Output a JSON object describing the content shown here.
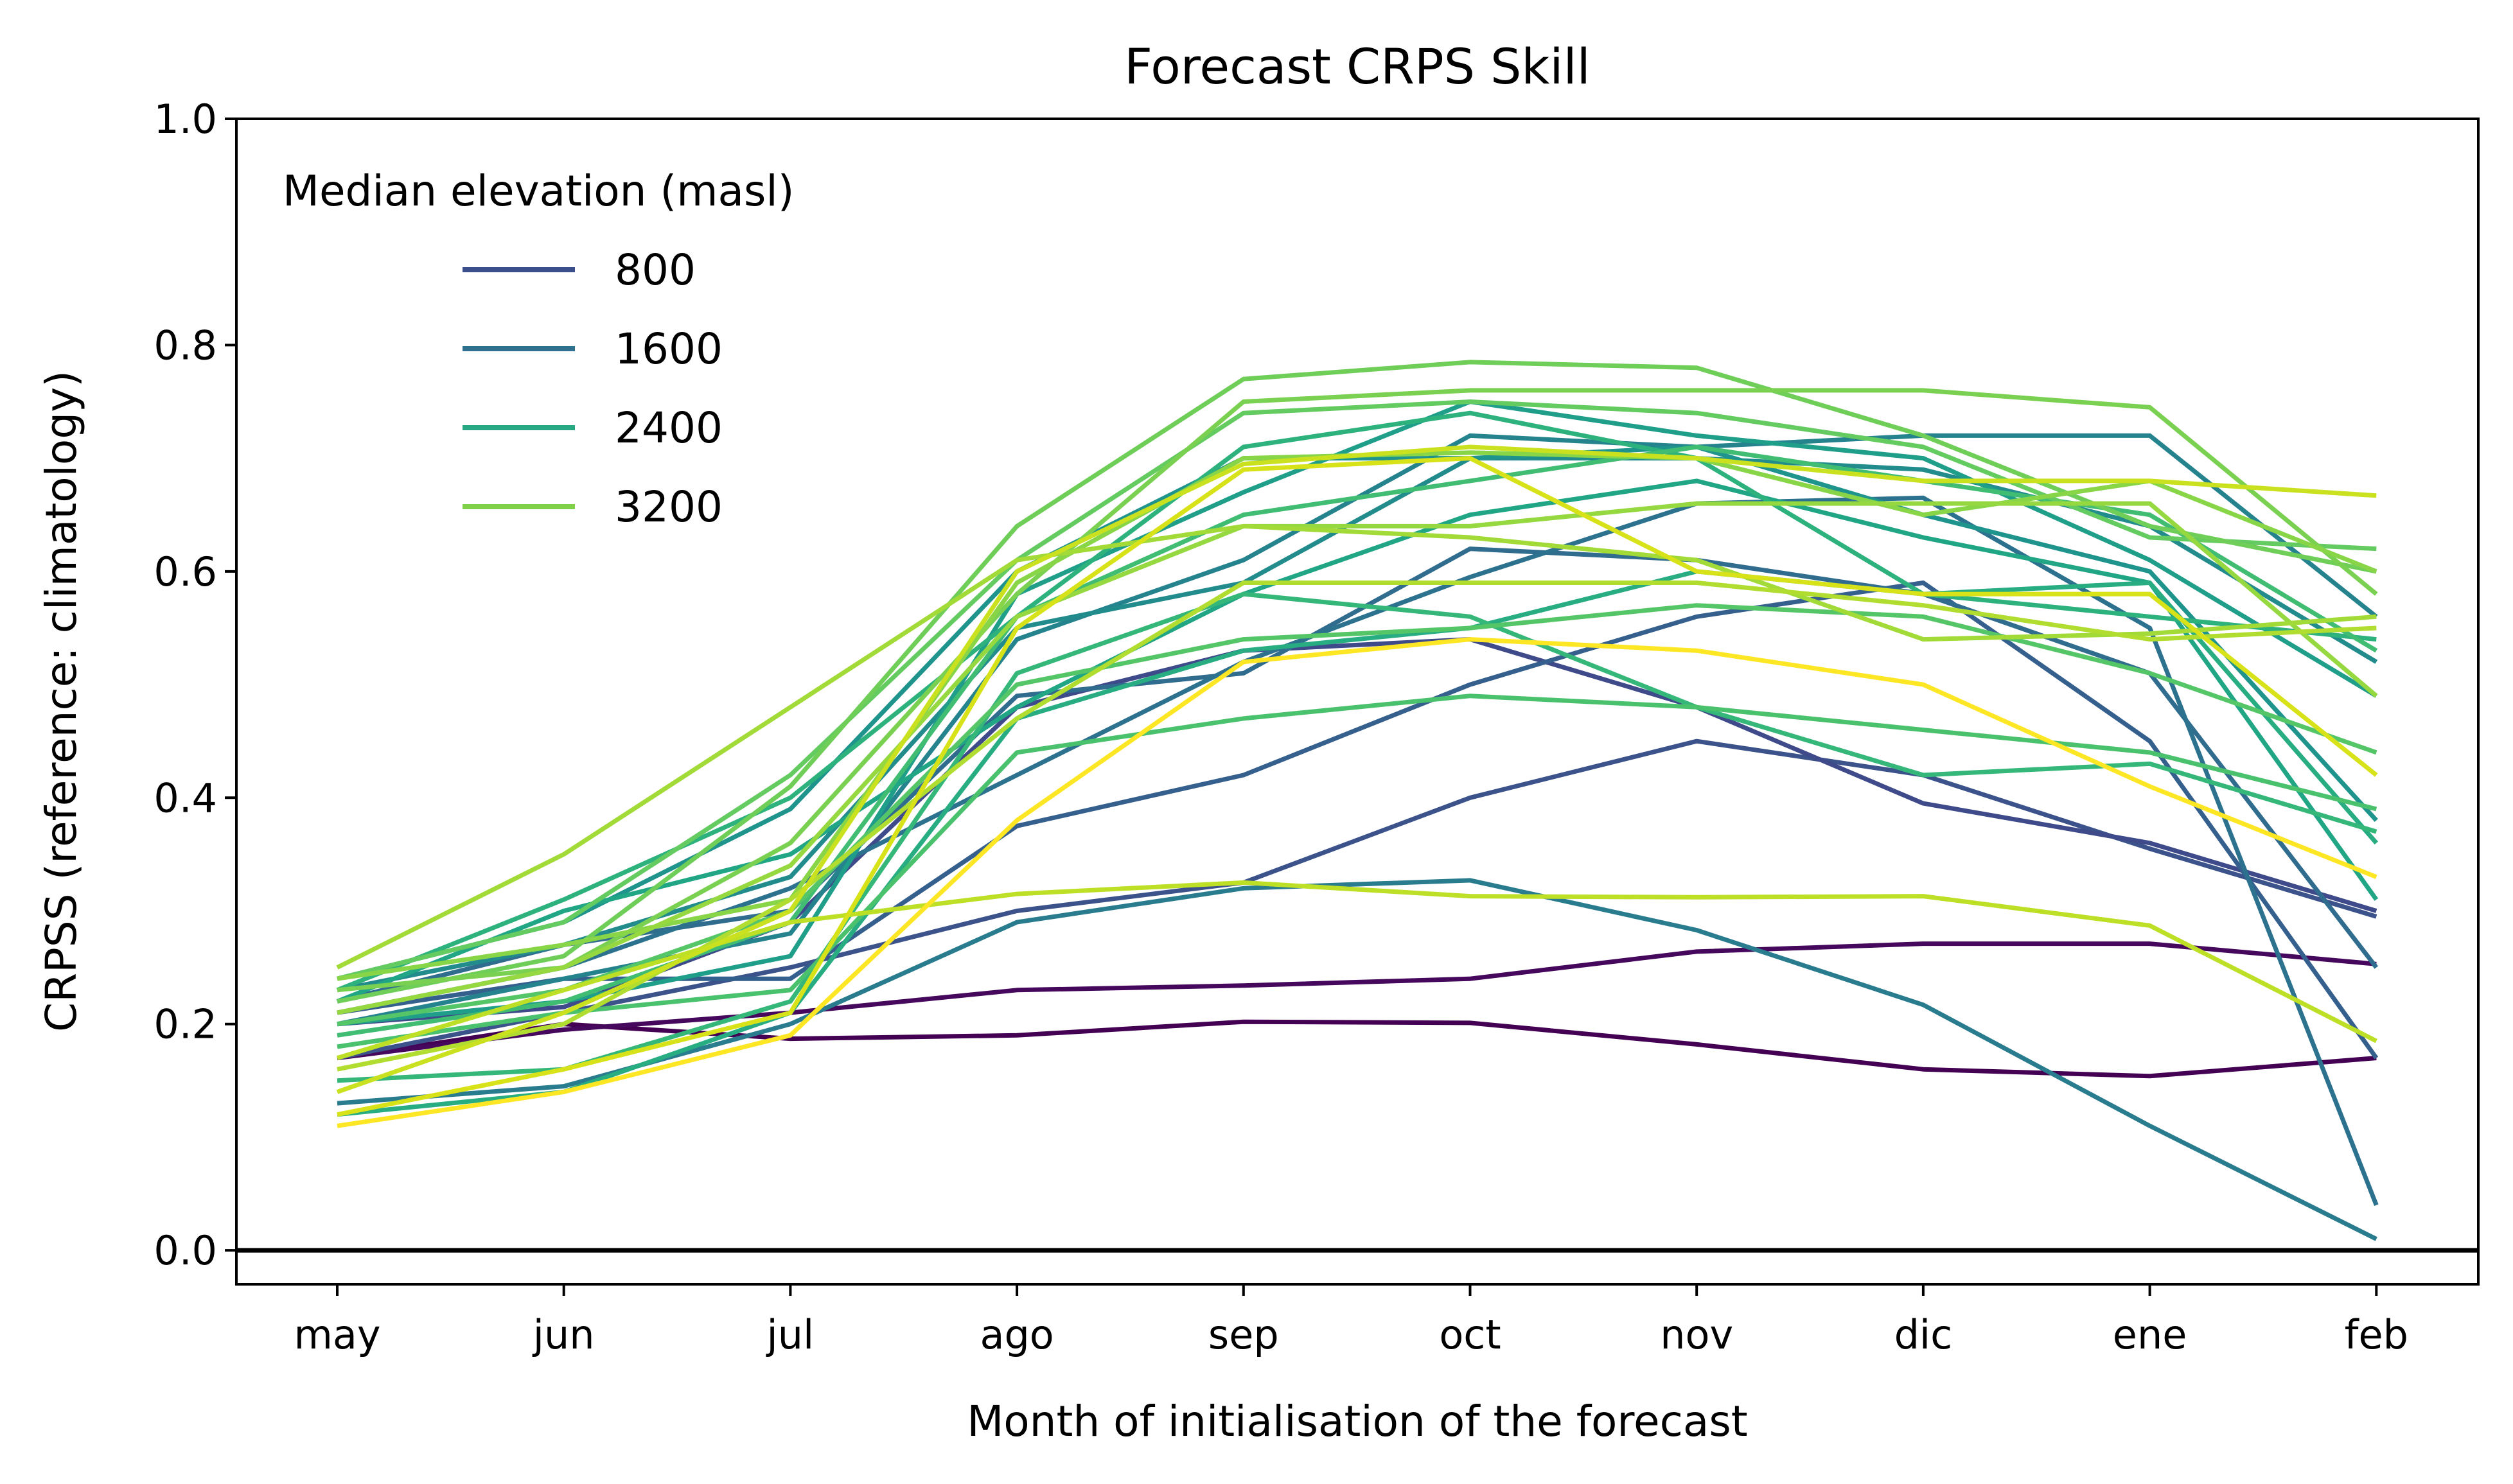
{
  "chart_data": {
    "type": "line",
    "title": "Forecast CRPS Skill",
    "xlabel": "Month of initialisation of the forecast",
    "ylabel": "CRPSS (reference: climatology)",
    "categories": [
      "may",
      "jun",
      "jul",
      "ago",
      "sep",
      "oct",
      "nov",
      "dic",
      "ene",
      "feb"
    ],
    "ylim": [
      -0.03,
      1.0
    ],
    "yticks": [
      "0.0",
      "0.2",
      "0.4",
      "0.6",
      "0.8",
      "1.0"
    ],
    "reference_line": 0.0,
    "grid": false,
    "legend": {
      "title": "Median elevation (masl)",
      "placement": "top-left",
      "entries": [
        {
          "label": "800",
          "color": "#3b4f8c"
        },
        {
          "label": "1600",
          "color": "#2e7191"
        },
        {
          "label": "2400",
          "color": "#27a882"
        },
        {
          "label": "3200",
          "color": "#7ed149"
        }
      ]
    },
    "series": [
      {
        "color": "#440154",
        "values": [
          0.17,
          0.2,
          0.187,
          0.19,
          0.202,
          0.201,
          0.182,
          0.16,
          0.154,
          0.17
        ]
      },
      {
        "color": "#46085c",
        "values": [
          0.17,
          0.195,
          0.21,
          0.23,
          0.234,
          0.24,
          0.264,
          0.271,
          0.271,
          0.253
        ]
      },
      {
        "color": "#3b528b",
        "values": [
          0.17,
          0.21,
          0.25,
          0.3,
          0.325,
          0.4,
          0.45,
          0.42,
          0.355,
          0.295
        ]
      },
      {
        "color": "#3e4a89",
        "values": [
          0.2,
          0.215,
          0.29,
          0.48,
          0.53,
          0.54,
          0.48,
          0.395,
          0.36,
          0.3
        ]
      },
      {
        "color": "#355f8d",
        "values": [
          0.21,
          0.24,
          0.24,
          0.375,
          0.42,
          0.5,
          0.56,
          0.59,
          0.45,
          0.17
        ]
      },
      {
        "color": "#2f6c8e",
        "values": [
          0.22,
          0.27,
          0.3,
          0.49,
          0.51,
          0.62,
          0.61,
          0.58,
          0.51,
          0.25
        ]
      },
      {
        "color": "#2c728e",
        "values": [
          0.21,
          0.25,
          0.32,
          0.42,
          0.52,
          0.595,
          0.66,
          0.665,
          0.55,
          0.04
        ]
      },
      {
        "color": "#297b8e",
        "values": [
          0.13,
          0.145,
          0.2,
          0.29,
          0.32,
          0.327,
          0.283,
          0.217,
          0.11,
          0.01
        ]
      },
      {
        "color": "#25838e",
        "values": [
          0.2,
          0.24,
          0.28,
          0.54,
          0.61,
          0.72,
          0.71,
          0.72,
          0.72,
          0.56
        ]
      },
      {
        "color": "#228c8d",
        "values": [
          0.23,
          0.27,
          0.33,
          0.55,
          0.59,
          0.7,
          0.7,
          0.69,
          0.64,
          0.52
        ]
      },
      {
        "color": "#1f948c",
        "values": [
          0.24,
          0.29,
          0.39,
          0.6,
          0.7,
          0.7,
          0.71,
          0.65,
          0.6,
          0.38
        ]
      },
      {
        "color": "#1f9e89",
        "values": [
          0.2,
          0.22,
          0.26,
          0.58,
          0.67,
          0.75,
          0.72,
          0.7,
          0.61,
          0.49
        ]
      },
      {
        "color": "#21a685",
        "values": [
          0.22,
          0.3,
          0.35,
          0.48,
          0.58,
          0.65,
          0.68,
          0.63,
          0.59,
          0.31
        ]
      },
      {
        "color": "#27ad81",
        "values": [
          0.12,
          0.14,
          0.21,
          0.47,
          0.53,
          0.55,
          0.6,
          0.58,
          0.59,
          0.36
        ]
      },
      {
        "color": "#2db27d",
        "values": [
          0.23,
          0.31,
          0.4,
          0.56,
          0.71,
          0.74,
          0.7,
          0.58,
          0.56,
          0.54
        ]
      },
      {
        "color": "#35b779",
        "values": [
          0.15,
          0.16,
          0.22,
          0.51,
          0.58,
          0.56,
          0.48,
          0.42,
          0.43,
          0.37
        ]
      },
      {
        "color": "#40bd72",
        "values": [
          0.19,
          0.22,
          0.29,
          0.56,
          0.65,
          0.68,
          0.71,
          0.68,
          0.65,
          0.53
        ]
      },
      {
        "color": "#4ac16d",
        "values": [
          0.18,
          0.21,
          0.23,
          0.44,
          0.47,
          0.49,
          0.48,
          0.46,
          0.44,
          0.39
        ]
      },
      {
        "color": "#55c667",
        "values": [
          0.2,
          0.23,
          0.3,
          0.5,
          0.54,
          0.55,
          0.57,
          0.56,
          0.51,
          0.44
        ]
      },
      {
        "color": "#63cb5f",
        "values": [
          0.24,
          0.29,
          0.42,
          0.61,
          0.74,
          0.75,
          0.74,
          0.71,
          0.63,
          0.62
        ]
      },
      {
        "color": "#6ece58",
        "values": [
          0.22,
          0.26,
          0.41,
          0.64,
          0.77,
          0.785,
          0.78,
          0.72,
          0.64,
          0.6
        ]
      },
      {
        "color": "#7ad151",
        "values": [
          0.23,
          0.25,
          0.36,
          0.58,
          0.75,
          0.76,
          0.76,
          0.76,
          0.745,
          0.58
        ]
      },
      {
        "color": "#89d548",
        "values": [
          0.24,
          0.27,
          0.31,
          0.59,
          0.7,
          0.705,
          0.7,
          0.65,
          0.68,
          0.6
        ]
      },
      {
        "color": "#95d840",
        "values": [
          0.21,
          0.25,
          0.34,
          0.56,
          0.64,
          0.64,
          0.66,
          0.66,
          0.66,
          0.49
        ]
      },
      {
        "color": "#a2da37",
        "values": [
          0.25,
          0.35,
          0.48,
          0.61,
          0.64,
          0.63,
          0.61,
          0.54,
          0.545,
          0.56
        ]
      },
      {
        "color": "#b0dd2f",
        "values": [
          0.16,
          0.2,
          0.31,
          0.47,
          0.59,
          0.59,
          0.59,
          0.57,
          0.54,
          0.55
        ]
      },
      {
        "color": "#bddf26",
        "values": [
          0.17,
          0.23,
          0.29,
          0.315,
          0.325,
          0.313,
          0.312,
          0.313,
          0.287,
          0.185
        ]
      },
      {
        "color": "#cae11f",
        "values": [
          0.14,
          0.21,
          0.3,
          0.6,
          0.695,
          0.71,
          0.7,
          0.68,
          0.68,
          0.667
        ]
      },
      {
        "color": "#d8e219",
        "values": [
          0.12,
          0.16,
          0.21,
          0.55,
          0.69,
          0.7,
          0.6,
          0.58,
          0.58,
          0.42
        ]
      },
      {
        "color": "#fde725",
        "values": [
          0.11,
          0.14,
          0.19,
          0.38,
          0.52,
          0.54,
          0.53,
          0.5,
          0.41,
          0.33
        ]
      }
    ]
  }
}
